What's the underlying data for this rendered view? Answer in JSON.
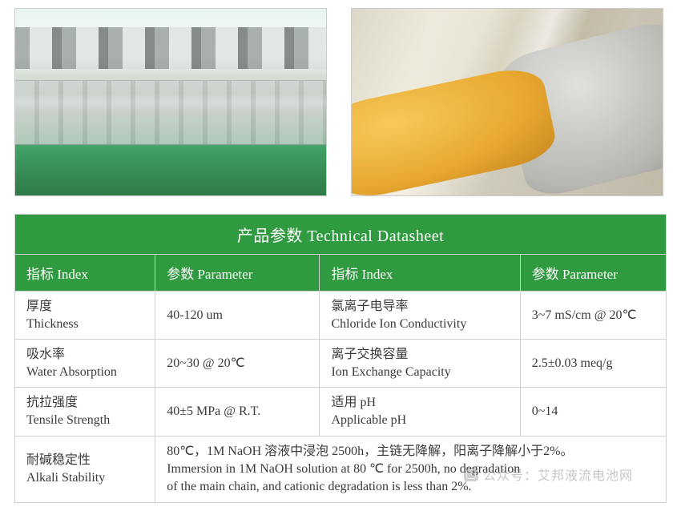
{
  "images": {
    "left_alt": "industrial-production-line",
    "right_alt": "membrane-film-roll"
  },
  "table": {
    "title": "产品参数  Technical Datasheet",
    "headers": {
      "index1": "指标 Index",
      "param1": "参数 Parameter",
      "index2": "指标 Index",
      "param2": "参数 Parameter"
    },
    "rows": [
      {
        "index1_cn": "厚度",
        "index1_en": "Thickness",
        "param1": "40-120 um",
        "index2_cn": "氯离子电导率",
        "index2_en": "Chloride Ion Conductivity",
        "param2": "3~7 mS/cm @ 20℃"
      },
      {
        "index1_cn": "吸水率",
        "index1_en": "Water Absorption",
        "param1": "20~30 @ 20℃",
        "index2_cn": "离子交换容量",
        "index2_en": "Ion Exchange Capacity",
        "param2": "2.5±0.03 meq/g"
      },
      {
        "index1_cn": "抗拉强度",
        "index1_en": "Tensile Strength",
        "param1": "40±5 MPa @ R.T.",
        "index2_cn": "适用 pH",
        "index2_en": "Applicable pH",
        "param2": "0~14"
      }
    ],
    "alkali_row": {
      "index_cn": "耐碱稳定性",
      "index_en": "Alkali Stability",
      "value_line1": "80℃，1M NaOH 溶液中浸泡 2500h，主链无降解，阳离子降解小于2%。",
      "value_line2": "Immersion in 1M NaOH solution at 80 ℃ for 2500h, no degradation",
      "value_line3": "of the main chain, and cationic degradation is less than 2%."
    },
    "colors": {
      "header_bg": "#2f9a3f",
      "header_text": "#ffffff",
      "cell_border": "#cfd2cf",
      "cell_text": "#3a3a3a"
    }
  },
  "watermark": {
    "text": "公众号：艾邦液流电池网"
  }
}
